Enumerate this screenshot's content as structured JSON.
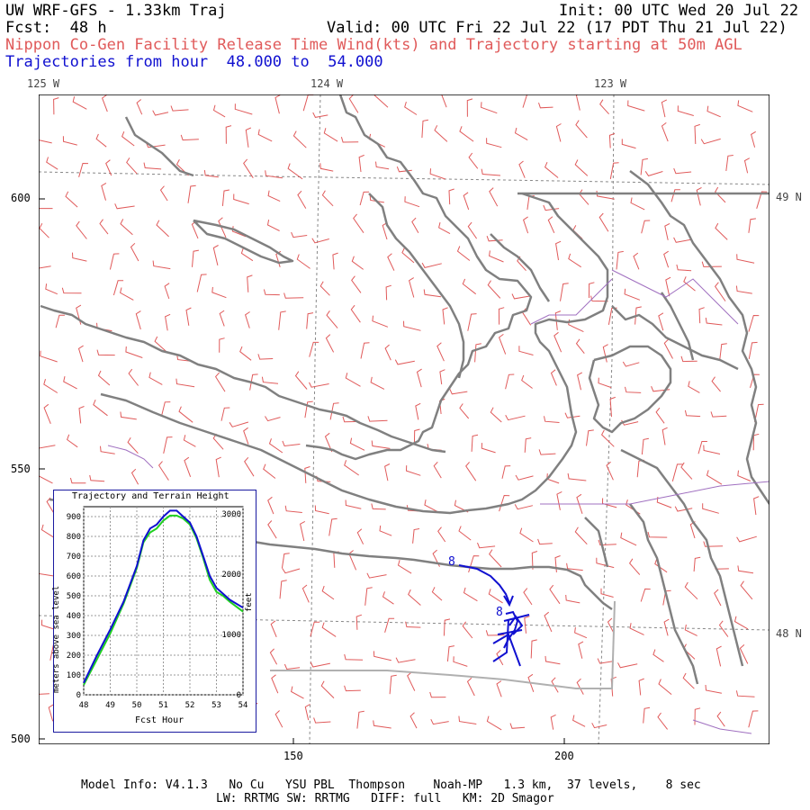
{
  "header": {
    "model": "UW WRF-GFS - 1.33km Traj",
    "init": "Init: 00 UTC Wed 20 Jul 22",
    "fcst": "Fcst:  48 h",
    "valid": "Valid: 00 UTC Fri 22 Jul 22 (17 PDT Thu 21 Jul 22)",
    "subtitle": "Nippon Co-Gen Facility Release Time Wind(kts) and Trajectory starting at 50m AGL",
    "traj_hours": "Trajectories from hour  48.000 to  54.000"
  },
  "map": {
    "lon_ticks": [
      "125 W",
      "124 W",
      "123 W"
    ],
    "lat_ticks": [
      "49 N",
      "48 N"
    ],
    "y_axis": [
      "600",
      "550",
      "500"
    ],
    "x_axis": [
      "150",
      "200"
    ],
    "traj_markers": [
      "8",
      "8"
    ],
    "colors": {
      "coast": "#808080",
      "wind": "#e05a5a",
      "traj": "#1010d0",
      "border": "#a070c0",
      "grid": "#888888"
    }
  },
  "inset": {
    "title": "Trajectory and Terrain Height",
    "ylabel": "meters above sea level",
    "y2label": "feet",
    "xlabel": "Fcst Hour",
    "yticks": [
      "900",
      "800",
      "700",
      "600",
      "500",
      "400",
      "300",
      "200",
      "100",
      "0"
    ],
    "y2ticks": [
      "3000",
      "2000",
      "1000",
      "0"
    ],
    "xticks": [
      "48",
      "49",
      "50",
      "51",
      "52",
      "53",
      "54"
    ],
    "chart_data": {
      "type": "line",
      "x": [
        48,
        48.5,
        49,
        49.5,
        50,
        50.25,
        50.5,
        50.75,
        51,
        51.25,
        51.5,
        51.75,
        52,
        52.25,
        52.5,
        52.75,
        53,
        53.25,
        53.5,
        54
      ],
      "series": [
        {
          "values": [
            60,
            200,
            330,
            470,
            650,
            780,
            840,
            860,
            900,
            930,
            930,
            900,
            870,
            800,
            700,
            600,
            540,
            510,
            480,
            440
          ]
        },
        {
          "values": [
            50,
            180,
            310,
            460,
            640,
            770,
            820,
            840,
            880,
            905,
            905,
            890,
            860,
            790,
            690,
            580,
            520,
            500,
            470,
            420
          ]
        }
      ],
      "colors": [
        "#1010d0",
        "#20d020"
      ],
      "xlim": [
        48,
        54
      ],
      "ylim": [
        0,
        950
      ]
    }
  },
  "footer": {
    "line1": "Model Info: V4.1.3   No Cu   YSU PBL  Thompson    Noah-MP   1.3 km,  37 levels,    8 sec",
    "line2": "LW: RRTMG SW: RRTMG   DIFF: full   KM: 2D Smagor"
  }
}
